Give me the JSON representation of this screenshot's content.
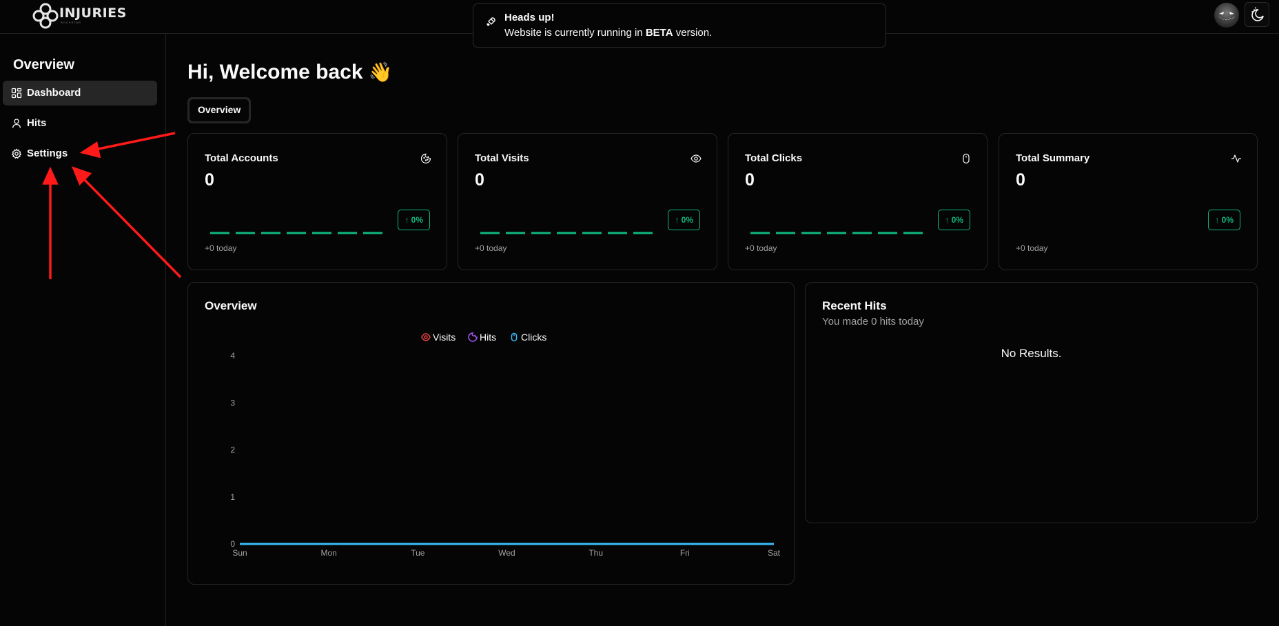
{
  "header": {
    "logo_text": "INJURIES",
    "logo_subtext": "ROCKSTAR"
  },
  "alert": {
    "title": "Heads up!",
    "body_prefix": "Website is currently running in ",
    "body_bold": "BETA",
    "body_suffix": " version.",
    "icon": "rocket-icon"
  },
  "sidebar": {
    "heading": "Overview",
    "items": [
      {
        "label": "Dashboard",
        "icon": "dashboard-icon",
        "active": true
      },
      {
        "label": "Hits",
        "icon": "user-icon",
        "active": false
      },
      {
        "label": "Settings",
        "icon": "gear-icon",
        "active": false
      }
    ]
  },
  "main": {
    "greeting": "Hi, Welcome back",
    "greeting_emoji": "👋",
    "tabs": [
      {
        "label": "Overview",
        "active": true
      }
    ]
  },
  "stats": [
    {
      "title": "Total Accounts",
      "value": "0",
      "badge": "0%",
      "foot": "+0 today",
      "icon": "cookie-icon",
      "sparkline": true
    },
    {
      "title": "Total Visits",
      "value": "0",
      "badge": "0%",
      "foot": "+0 today",
      "icon": "eye-icon",
      "sparkline": true
    },
    {
      "title": "Total Clicks",
      "value": "0",
      "badge": "0%",
      "foot": "+0 today",
      "icon": "mouse-icon",
      "sparkline": true
    },
    {
      "title": "Total Summary",
      "value": "0",
      "badge": "0%",
      "foot": "+0 today",
      "icon": "activity-icon",
      "sparkline": false
    }
  ],
  "colors": {
    "accent_green": "#10b981",
    "visits": "#ef4444",
    "hits": "#a855f7",
    "clicks": "#38bdf8",
    "annotation_red": "#ff1a1a"
  },
  "overview_panel": {
    "title": "Overview"
  },
  "recent_hits": {
    "title": "Recent Hits",
    "subtitle": "You made 0 hits today",
    "empty": "No Results."
  },
  "chart_data": {
    "type": "line",
    "title": "Overview",
    "categories": [
      "Sun",
      "Mon",
      "Tue",
      "Wed",
      "Thu",
      "Fri",
      "Sat"
    ],
    "series": [
      {
        "name": "Visits",
        "values": [
          0,
          0,
          0,
          0,
          0,
          0,
          0
        ],
        "color": "#ef4444",
        "icon": "eye-icon"
      },
      {
        "name": "Hits",
        "values": [
          0,
          0,
          0,
          0,
          0,
          0,
          0
        ],
        "color": "#a855f7",
        "icon": "cookie-icon"
      },
      {
        "name": "Clicks",
        "values": [
          0,
          0,
          0,
          0,
          0,
          0,
          0
        ],
        "color": "#38bdf8",
        "icon": "mouse-icon"
      }
    ],
    "yticks": [
      0,
      1,
      2,
      3,
      4
    ],
    "ylim": [
      0,
      4
    ],
    "grid": false,
    "legend": "top-center"
  }
}
